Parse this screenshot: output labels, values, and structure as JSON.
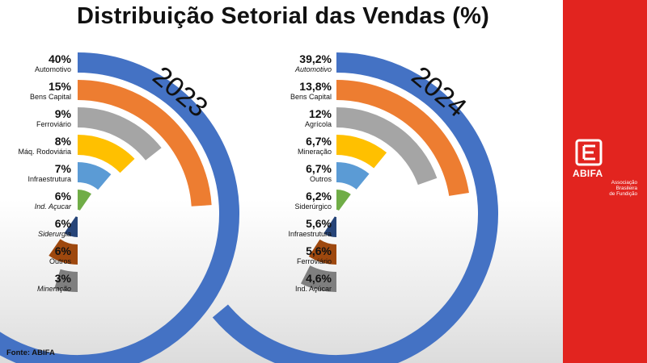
{
  "title": "Distribuição Setorial das Vendas (%)",
  "footer": "Fonte: ABIFA",
  "logo": {
    "name": "ABIFA",
    "sub_lines": [
      "Associação",
      "Brasileira",
      "de Fundição"
    ]
  },
  "colors": {
    "blue": "#4472c4",
    "orange": "#ed7d31",
    "gray": "#a5a5a5",
    "yellow": "#ffc000",
    "lightblue": "#5b9bd5",
    "green": "#70ad47",
    "navy": "#264478",
    "brown": "#9e480e",
    "panel": "#e2241f"
  },
  "chart_data": [
    {
      "type": "radial-bar",
      "title": "2023",
      "unit": "%",
      "categories": [
        "Automotivo",
        "Bens Capital",
        "Ferroviário",
        "Máq. Rodoviária",
        "Infraestrutura",
        "Ind. Açucar",
        "Siderurgia",
        "Outros",
        "Mineração"
      ],
      "values": [
        40,
        15,
        9,
        8,
        7,
        6,
        6,
        6,
        3
      ],
      "value_labels": [
        "40%",
        "15%",
        "9%",
        "8%",
        "7%",
        "6%",
        "6%",
        "6%",
        "3%"
      ],
      "label_italic": [
        false,
        false,
        false,
        false,
        false,
        true,
        true,
        false,
        true
      ],
      "colors": [
        "#4472c4",
        "#ed7d31",
        "#a5a5a5",
        "#ffc000",
        "#5b9bd5",
        "#70ad47",
        "#264478",
        "#9e480e",
        "#7f7f7f"
      ],
      "max_value": 40
    },
    {
      "type": "radial-bar",
      "title": "2024",
      "unit": "%",
      "categories": [
        "Automotivo",
        "Bens Capital",
        "Agrícola",
        "Mineração",
        "Outros",
        "Siderúrgico",
        "Infraestrutura",
        "Ferroviário",
        "Ind. Açúcar"
      ],
      "values": [
        39.2,
        13.8,
        12,
        6.7,
        6.7,
        6.2,
        5.6,
        5.6,
        4.6
      ],
      "value_labels": [
        "39,2%",
        "13,8%",
        "12%",
        "6,7%",
        "6,7%",
        "6,2%",
        "5,6%",
        "5,6%",
        "4,6%"
      ],
      "label_italic": [
        true,
        false,
        false,
        false,
        false,
        false,
        false,
        false,
        false
      ],
      "colors": [
        "#4472c4",
        "#ed7d31",
        "#a5a5a5",
        "#ffc000",
        "#5b9bd5",
        "#70ad47",
        "#264478",
        "#9e480e",
        "#7f7f7f"
      ],
      "max_value": 39.2
    }
  ]
}
